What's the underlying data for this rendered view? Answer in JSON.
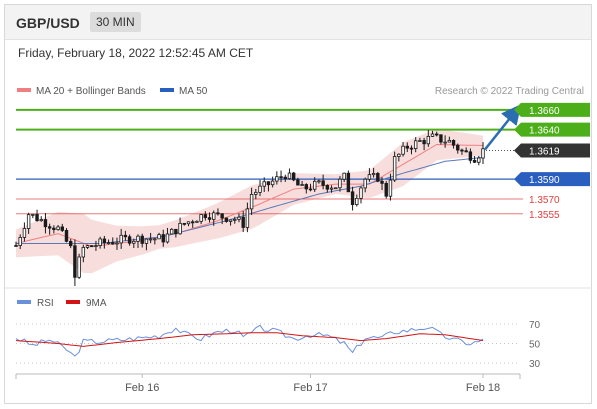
{
  "header": {
    "pair": "GBP/USD",
    "timeframe": "30 MIN"
  },
  "datetime": "Friday, February 18, 2022 12:52:45 AM CET",
  "legend": {
    "ma20_label": "MA 20 + Bollinger Bands",
    "ma50_label": "MA 50",
    "credit": "Research © 2022 Trading Central",
    "rsi_label": "RSI",
    "ma9_label": "9MA"
  },
  "colors": {
    "green_level": "#4caf1a",
    "blue_level": "#2a5fbf",
    "red_level": "#e04040",
    "current_price": "#333333",
    "candle": "#1a1a1a",
    "bollinger_band": "#f6d2d2",
    "ma20": "#f08080",
    "ma50": "#5a78b8",
    "rsi": "#6a8fdb",
    "rsi_ma9": "#d21414",
    "arrow": "#2a6db0"
  },
  "chart_data": [
    {
      "type": "candlestick",
      "title": "GBP/USD 30 MIN",
      "ylim": [
        1.348,
        1.367
      ],
      "x_tick_labels": [
        "Feb 16",
        "Feb 17",
        "Feb 18"
      ],
      "x_tick_positions": [
        30,
        70,
        111
      ],
      "n_bars": 112,
      "levels": [
        {
          "value": 1.366,
          "label": "1.3660",
          "kind": "resistance",
          "color": "green"
        },
        {
          "value": 1.364,
          "label": "1.3640",
          "kind": "resistance",
          "color": "green"
        },
        {
          "value": 1.3619,
          "label": "1.3619",
          "kind": "current",
          "color": "dark"
        },
        {
          "value": 1.359,
          "label": "1.3590",
          "kind": "pivot",
          "color": "blue"
        },
        {
          "value": 1.357,
          "label": "1.3570",
          "kind": "support",
          "color": "red"
        },
        {
          "value": 1.3555,
          "label": "1.3555",
          "kind": "support",
          "color": "red"
        }
      ],
      "price_anchors": [
        [
          0,
          1.3523
        ],
        [
          3,
          1.3555
        ],
        [
          10,
          1.354
        ],
        [
          13,
          1.352
        ],
        [
          14,
          1.3495
        ],
        [
          16,
          1.352
        ],
        [
          20,
          1.3525
        ],
        [
          27,
          1.353
        ],
        [
          35,
          1.353
        ],
        [
          40,
          1.3545
        ],
        [
          45,
          1.3555
        ],
        [
          52,
          1.355
        ],
        [
          54,
          1.3545
        ],
        [
          56,
          1.3575
        ],
        [
          60,
          1.3585
        ],
        [
          64,
          1.3595
        ],
        [
          68,
          1.358
        ],
        [
          72,
          1.3585
        ],
        [
          76,
          1.3583
        ],
        [
          78,
          1.3592
        ],
        [
          80,
          1.3568
        ],
        [
          83,
          1.359
        ],
        [
          86,
          1.3592
        ],
        [
          88,
          1.3575
        ],
        [
          90,
          1.361
        ],
        [
          93,
          1.3623
        ],
        [
          96,
          1.3628
        ],
        [
          99,
          1.3632
        ],
        [
          103,
          1.3628
        ],
        [
          106,
          1.3618
        ],
        [
          109,
          1.3612
        ],
        [
          111,
          1.3619
        ]
      ],
      "ma20_anchors": [
        [
          0,
          1.3525
        ],
        [
          10,
          1.3535
        ],
        [
          18,
          1.3522
        ],
        [
          30,
          1.3528
        ],
        [
          38,
          1.3535
        ],
        [
          48,
          1.3548
        ],
        [
          58,
          1.3565
        ],
        [
          66,
          1.358
        ],
        [
          76,
          1.3585
        ],
        [
          84,
          1.3585
        ],
        [
          92,
          1.3605
        ],
        [
          100,
          1.3625
        ],
        [
          111,
          1.3624
        ]
      ],
      "bollinger_width_anchors": [
        [
          0,
          0.0014
        ],
        [
          10,
          0.0022
        ],
        [
          16,
          0.003
        ],
        [
          24,
          0.0018
        ],
        [
          34,
          0.0012
        ],
        [
          44,
          0.0016
        ],
        [
          56,
          0.0022
        ],
        [
          66,
          0.0016
        ],
        [
          76,
          0.001
        ],
        [
          84,
          0.0014
        ],
        [
          92,
          0.0022
        ],
        [
          100,
          0.0016
        ],
        [
          111,
          0.001
        ]
      ],
      "ma50_anchors": [
        [
          0,
          1.3525
        ],
        [
          20,
          1.3525
        ],
        [
          35,
          1.3532
        ],
        [
          50,
          1.3548
        ],
        [
          62,
          1.3563
        ],
        [
          72,
          1.3575
        ],
        [
          82,
          1.3583
        ],
        [
          92,
          1.3596
        ],
        [
          102,
          1.3608
        ],
        [
          111,
          1.3612
        ]
      ],
      "forecast": {
        "from_value": 1.362,
        "to_value": 1.366,
        "direction": "up"
      }
    },
    {
      "type": "line",
      "title": "RSI",
      "ylim": [
        30,
        70
      ],
      "y_tick_labels": [
        "70",
        "50",
        "30"
      ],
      "y_ticks": [
        70,
        50,
        30
      ],
      "series": [
        {
          "name": "RSI",
          "anchors": [
            [
              0,
              56
            ],
            [
              4,
              48
            ],
            [
              8,
              54
            ],
            [
              12,
              44
            ],
            [
              14,
              36
            ],
            [
              16,
              52
            ],
            [
              20,
              52
            ],
            [
              28,
              55
            ],
            [
              34,
              58
            ],
            [
              38,
              66
            ],
            [
              40,
              60
            ],
            [
              44,
              55
            ],
            [
              48,
              62
            ],
            [
              52,
              64
            ],
            [
              54,
              56
            ],
            [
              58,
              66
            ],
            [
              62,
              62
            ],
            [
              66,
              55
            ],
            [
              70,
              59
            ],
            [
              74,
              58
            ],
            [
              78,
              50
            ],
            [
              80,
              40
            ],
            [
              83,
              56
            ],
            [
              87,
              56
            ],
            [
              90,
              62
            ],
            [
              94,
              64
            ],
            [
              98,
              67
            ],
            [
              101,
              59
            ],
            [
              104,
              54
            ],
            [
              108,
              50
            ],
            [
              111,
              53
            ]
          ]
        },
        {
          "name": "9MA",
          "anchors": [
            [
              0,
              53
            ],
            [
              10,
              50
            ],
            [
              16,
              47
            ],
            [
              24,
              51
            ],
            [
              34,
              55
            ],
            [
              42,
              59
            ],
            [
              50,
              60
            ],
            [
              56,
              61
            ],
            [
              62,
              61
            ],
            [
              68,
              58
            ],
            [
              76,
              56
            ],
            [
              82,
              53
            ],
            [
              88,
              55
            ],
            [
              96,
              60
            ],
            [
              102,
              59
            ],
            [
              108,
              55
            ],
            [
              111,
              53
            ]
          ]
        }
      ]
    }
  ]
}
